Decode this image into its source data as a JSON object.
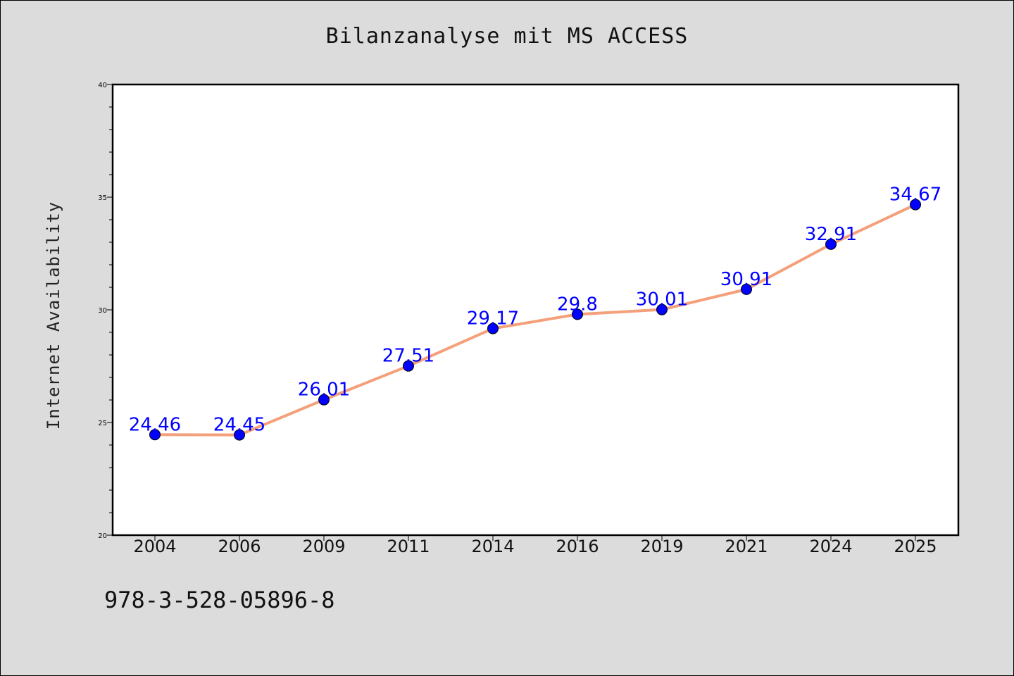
{
  "chart_data": {
    "type": "line",
    "title": "Bilanzanalyse mit MS ACCESS",
    "ylabel": "Internet Availability",
    "xlabel": "",
    "categories": [
      "2004",
      "2006",
      "2009",
      "2011",
      "2014",
      "2016",
      "2019",
      "2021",
      "2024",
      "2025"
    ],
    "values": [
      24.46,
      24.45,
      26.01,
      27.51,
      29.17,
      29.8,
      30.01,
      30.91,
      32.91,
      34.67
    ],
    "data_labels": [
      "24.46",
      "24.45",
      "26.01",
      "27.51",
      "29.17",
      "29.8",
      "30.01",
      "30.91",
      "32.91",
      "34.67"
    ],
    "ylim": [
      20,
      40
    ],
    "yticks": [
      "20",
      "25",
      "30",
      "35",
      "40"
    ],
    "grid": false,
    "line_color": "#f4a07a",
    "marker_color": "#0000ff",
    "label_color": "#0000ff"
  },
  "footer": {
    "text": "978-3-528-05896-8"
  }
}
